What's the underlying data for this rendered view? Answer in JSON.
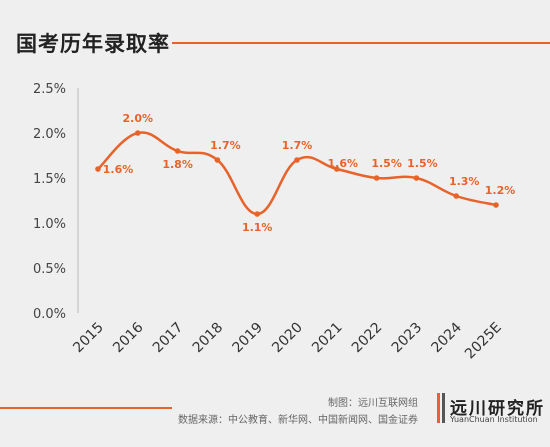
{
  "header": {
    "title": "国考历年录取率"
  },
  "chart_data": {
    "type": "line",
    "categories": [
      "2015",
      "2016",
      "2017",
      "2018",
      "2019",
      "2020",
      "2021",
      "2022",
      "2023",
      "2024",
      "2025E"
    ],
    "series": [
      {
        "values": [
          1.6,
          2.0,
          1.8,
          1.7,
          1.1,
          1.7,
          1.6,
          1.5,
          1.5,
          1.3,
          1.2
        ]
      }
    ],
    "data_labels": [
      "1.6%",
      "2.0%",
      "1.8%",
      "1.7%",
      "1.1%",
      "1.7%",
      "1.6%",
      "1.5%",
      "1.5%",
      "1.3%",
      "1.2%"
    ],
    "yticks": [
      "0.0%",
      "0.5%",
      "1.0%",
      "1.5%",
      "2.0%",
      "2.5%"
    ],
    "ylim": [
      0,
      2.5
    ],
    "grid": false,
    "line_color": "#e8632a"
  },
  "footer": {
    "credit_made": "制图：远川互联网组",
    "credit_source": "数据来源：中公教育、新华网、中国新闻网、国金证券",
    "logo_cn": "远川研究所",
    "logo_en": "YuanChuan Institution"
  }
}
